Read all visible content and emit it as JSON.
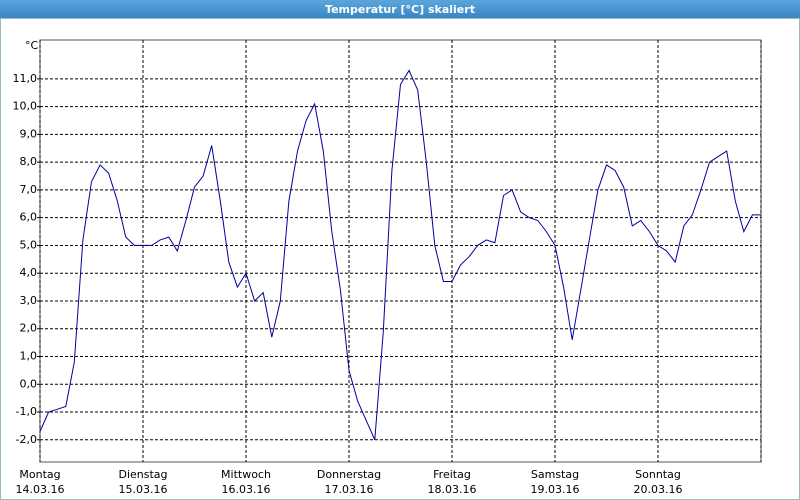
{
  "chart_data": {
    "type": "line",
    "title": "Temperatur [°C] skaliert",
    "ylabel": "°C",
    "x": [
      0,
      2,
      4,
      6,
      8,
      10,
      12,
      14,
      16,
      18,
      20,
      22,
      24,
      26,
      28,
      30,
      32,
      34,
      36,
      38,
      40,
      42,
      44,
      46,
      48,
      50,
      52,
      54,
      56,
      58,
      60,
      62,
      64,
      66,
      68,
      70,
      72,
      74,
      76,
      78,
      80,
      82,
      84,
      86,
      88,
      90,
      92,
      94,
      96,
      98,
      100,
      102,
      104,
      106,
      108,
      110,
      112,
      114,
      116,
      118,
      120,
      122,
      124,
      126,
      128,
      130,
      132,
      134,
      136,
      138,
      140,
      142,
      144,
      146,
      148,
      150,
      152,
      154,
      156,
      158,
      160,
      162,
      164,
      166,
      168
    ],
    "series": [
      {
        "color": "#0000a0",
        "values": [
          -1.7,
          -1.0,
          -0.9,
          -0.8,
          0.8,
          5.2,
          7.3,
          7.9,
          7.6,
          6.6,
          5.3,
          5.0,
          5.0,
          5.0,
          5.2,
          5.3,
          4.8,
          5.9,
          7.1,
          7.5,
          8.6,
          6.6,
          4.4,
          3.5,
          4.0,
          3.0,
          3.3,
          1.7,
          3.0,
          6.6,
          8.4,
          9.5,
          10.1,
          8.4,
          5.5,
          3.4,
          0.5,
          -0.6,
          -1.3,
          -2.0,
          1.9,
          7.7,
          10.8,
          11.3,
          10.6,
          8.0,
          5.0,
          3.7,
          3.7,
          4.3,
          4.6,
          5.0,
          5.2,
          5.1,
          6.8,
          7.0,
          6.2,
          6.0,
          5.9,
          5.5,
          5.0,
          3.5,
          1.6,
          3.4,
          5.2,
          7.0,
          7.9,
          7.7,
          7.1,
          5.7,
          5.9,
          5.5,
          5.0,
          4.8,
          4.4,
          5.7,
          6.1,
          7.0,
          8.0,
          8.2,
          8.4,
          6.6,
          5.5,
          6.1,
          6.1
        ]
      }
    ],
    "xlim": [
      0,
      168
    ],
    "xticks": [
      {
        "value": 0,
        "label": "Montag"
      },
      {
        "value": 24,
        "label": "Dienstag"
      },
      {
        "value": 48,
        "label": "Mittwoch"
      },
      {
        "value": 72,
        "label": "Donnerstag"
      },
      {
        "value": 96,
        "label": "Freitag"
      },
      {
        "value": 120,
        "label": "Samstag"
      },
      {
        "value": 144,
        "label": "Sonntag"
      },
      168
    ],
    "xtick_dates": [
      "14.03.16",
      "15.03.16",
      "16.03.16",
      "17.03.16",
      "18.03.16",
      "19.03.16",
      "20.03.16"
    ],
    "ylim": [
      -2.8,
      12.4
    ],
    "yticks": [
      {
        "value": -2,
        "label": "-2,0"
      },
      {
        "value": -1,
        "label": "-1,0"
      },
      {
        "value": 0,
        "label": "0,0"
      },
      {
        "value": 1,
        "label": "1,0"
      },
      {
        "value": 2,
        "label": "2,0"
      },
      {
        "value": 3,
        "label": "3,0"
      },
      {
        "value": 4,
        "label": "4,0"
      },
      {
        "value": 5,
        "label": "5,0"
      },
      {
        "value": 6,
        "label": "6,0"
      },
      {
        "value": 7,
        "label": "7,0"
      },
      {
        "value": 8,
        "label": "8,0"
      },
      {
        "value": 9,
        "label": "9,0"
      },
      {
        "value": 10,
        "label": "10,0"
      },
      {
        "value": 11,
        "label": "11,0"
      }
    ],
    "grid": true
  }
}
